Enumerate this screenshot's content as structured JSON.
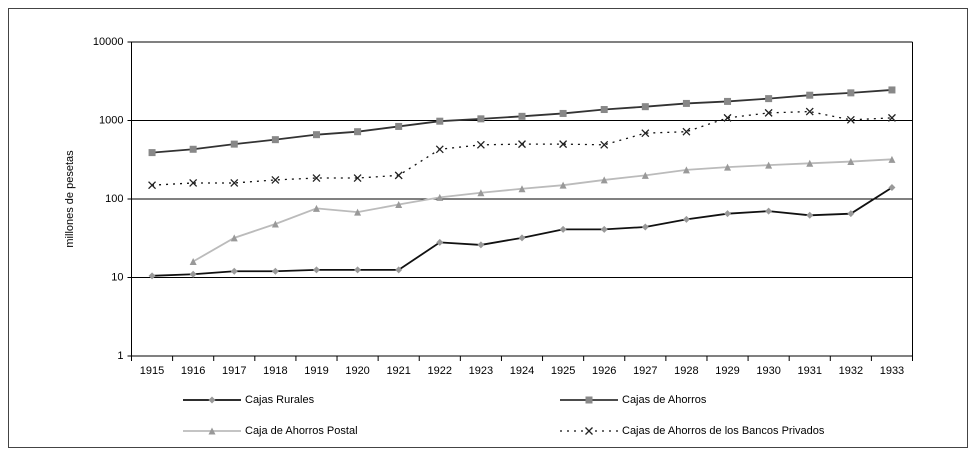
{
  "chart_data": {
    "type": "line",
    "y_label": "millones de pesetas",
    "categories": [
      "1915",
      "1916",
      "1917",
      "1918",
      "1919",
      "1920",
      "1921",
      "1922",
      "1923",
      "1924",
      "1925",
      "1926",
      "1927",
      "1928",
      "1929",
      "1930",
      "1931",
      "1932",
      "1933"
    ],
    "log_scale": true,
    "grid": true,
    "legend": "bottom",
    "ylim": [
      1,
      10000
    ],
    "yticks": [
      1,
      10,
      100,
      1000,
      10000
    ],
    "series": [
      {
        "name": "Cajas Rurales",
        "color": "#111111",
        "marker_color": "#999999",
        "marker": "diamond",
        "dash": "solid",
        "values": [
          10.5,
          11,
          12,
          12,
          12.5,
          12.5,
          12.5,
          28,
          26,
          32,
          41,
          41,
          44,
          55,
          65,
          70,
          62,
          65,
          140
        ]
      },
      {
        "name": "Cajas de Ahorros",
        "color": "#333333",
        "marker_color": "#888888",
        "marker": "square",
        "dash": "solid",
        "values": [
          390,
          430,
          500,
          570,
          660,
          720,
          840,
          980,
          1050,
          1130,
          1230,
          1380,
          1500,
          1650,
          1750,
          1900,
          2100,
          2250,
          2450
        ]
      },
      {
        "name": "Caja de Ahorros Postal",
        "color": "#bbbbbb",
        "marker_color": "#999999",
        "marker": "triangle",
        "dash": "solid",
        "values": [
          null,
          16,
          32,
          48,
          76,
          68,
          85,
          105,
          120,
          135,
          150,
          175,
          200,
          235,
          255,
          270,
          285,
          300,
          320
        ]
      },
      {
        "name": "Cajas de Ahorros de los Bancos Privados",
        "color": "#111111",
        "marker_color": "#222222",
        "marker": "x",
        "dash": "dotted",
        "values": [
          150,
          160,
          160,
          175,
          185,
          185,
          200,
          430,
          490,
          500,
          500,
          490,
          690,
          720,
          1080,
          1250,
          1300,
          1020,
          1080
        ]
      }
    ]
  }
}
